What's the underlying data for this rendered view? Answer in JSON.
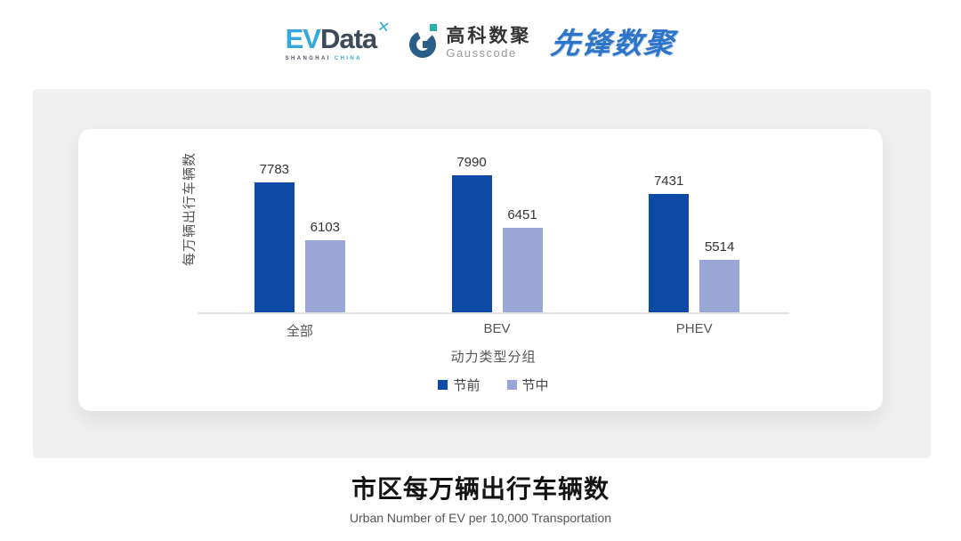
{
  "header": {
    "evdata": {
      "ev": "EV",
      "data": "Data",
      "mark": "✕",
      "sub_left": "SHANGHAI",
      "sub_right": "CHINA"
    },
    "gausscode": {
      "cn": "高科数聚",
      "en": "Gausscode",
      "mark_color": "#2a5d87",
      "accent_color": "#27b3ab"
    },
    "pioneer": "先锋数聚"
  },
  "chart_data": {
    "type": "bar",
    "categories": [
      "全部",
      "BEV",
      "PHEV"
    ],
    "series": [
      {
        "name": "节前",
        "color": "#0c4aa6",
        "values": [
          7783,
          7990,
          7431
        ]
      },
      {
        "name": "节中",
        "color": "#9aa6d5",
        "values": [
          6103,
          6451,
          5514
        ]
      }
    ],
    "title": "",
    "xlabel": "动力类型分组",
    "ylabel": "每万辆出行车辆数",
    "ylim": [
      4000,
      8500
    ],
    "grid": false,
    "legend_position": "bottom",
    "value_labels": true
  },
  "footer": {
    "title": "市区每万辆出行车辆数",
    "subtitle": "Urban Number of EV per 10,000 Transportation"
  }
}
